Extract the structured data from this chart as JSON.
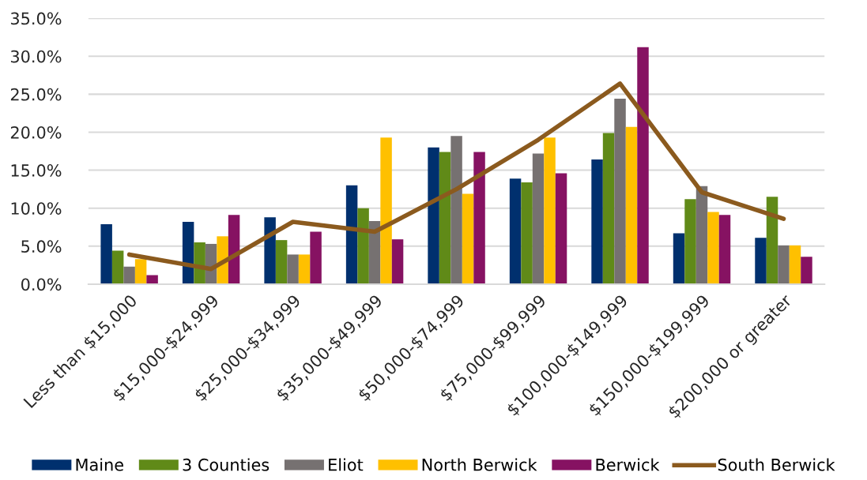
{
  "chart_data": {
    "type": "bar",
    "categories": [
      "Less than $15,000",
      "$15,000-$24,999",
      "$25,000-$34,999",
      "$35,000-$49,999",
      "$50,000-$74,999",
      "$75,000-$99,999",
      "$100,000-$149,999",
      "$150,000-$199,999",
      "$200,000 or greater"
    ],
    "series": [
      {
        "name": "Maine",
        "color": "#00306e",
        "values": [
          7.9,
          8.2,
          8.8,
          13.0,
          18.0,
          13.9,
          16.4,
          6.7,
          6.1
        ]
      },
      {
        "name": "3 Counties",
        "color": "#608a18",
        "values": [
          4.4,
          5.5,
          5.8,
          10.0,
          17.4,
          13.4,
          19.9,
          11.2,
          11.5
        ]
      },
      {
        "name": "Eliot",
        "color": "#767171",
        "values": [
          2.3,
          5.3,
          3.9,
          8.3,
          19.5,
          17.2,
          24.4,
          12.9,
          5.1
        ]
      },
      {
        "name": "North Berwick",
        "color": "#ffc000",
        "values": [
          3.3,
          6.3,
          3.9,
          19.3,
          11.9,
          19.3,
          20.7,
          9.5,
          5.1
        ]
      },
      {
        "name": "Berwick",
        "color": "#861262",
        "values": [
          1.2,
          9.1,
          6.9,
          5.9,
          17.4,
          14.6,
          31.2,
          9.1,
          3.6
        ]
      },
      {
        "name": "South Berwick",
        "type": "line",
        "color": "#8b5a1e",
        "values": [
          3.9,
          2.0,
          8.2,
          6.9,
          12.5,
          19.0,
          26.4,
          12.1,
          8.6
        ]
      }
    ],
    "ylim": [
      0,
      35
    ],
    "yticks": [
      {
        "value": 0,
        "label": "0.0%"
      },
      {
        "value": 5,
        "label": "5.0%"
      },
      {
        "value": 10,
        "label": "10.0%"
      },
      {
        "value": 15,
        "label": "15.0%"
      },
      {
        "value": 20,
        "label": "20.0%"
      },
      {
        "value": 25,
        "label": "25.0%"
      },
      {
        "value": 30,
        "label": "30.0%"
      },
      {
        "value": 35,
        "label": "35.0%"
      }
    ],
    "grid": "y",
    "legend": "bottom"
  }
}
